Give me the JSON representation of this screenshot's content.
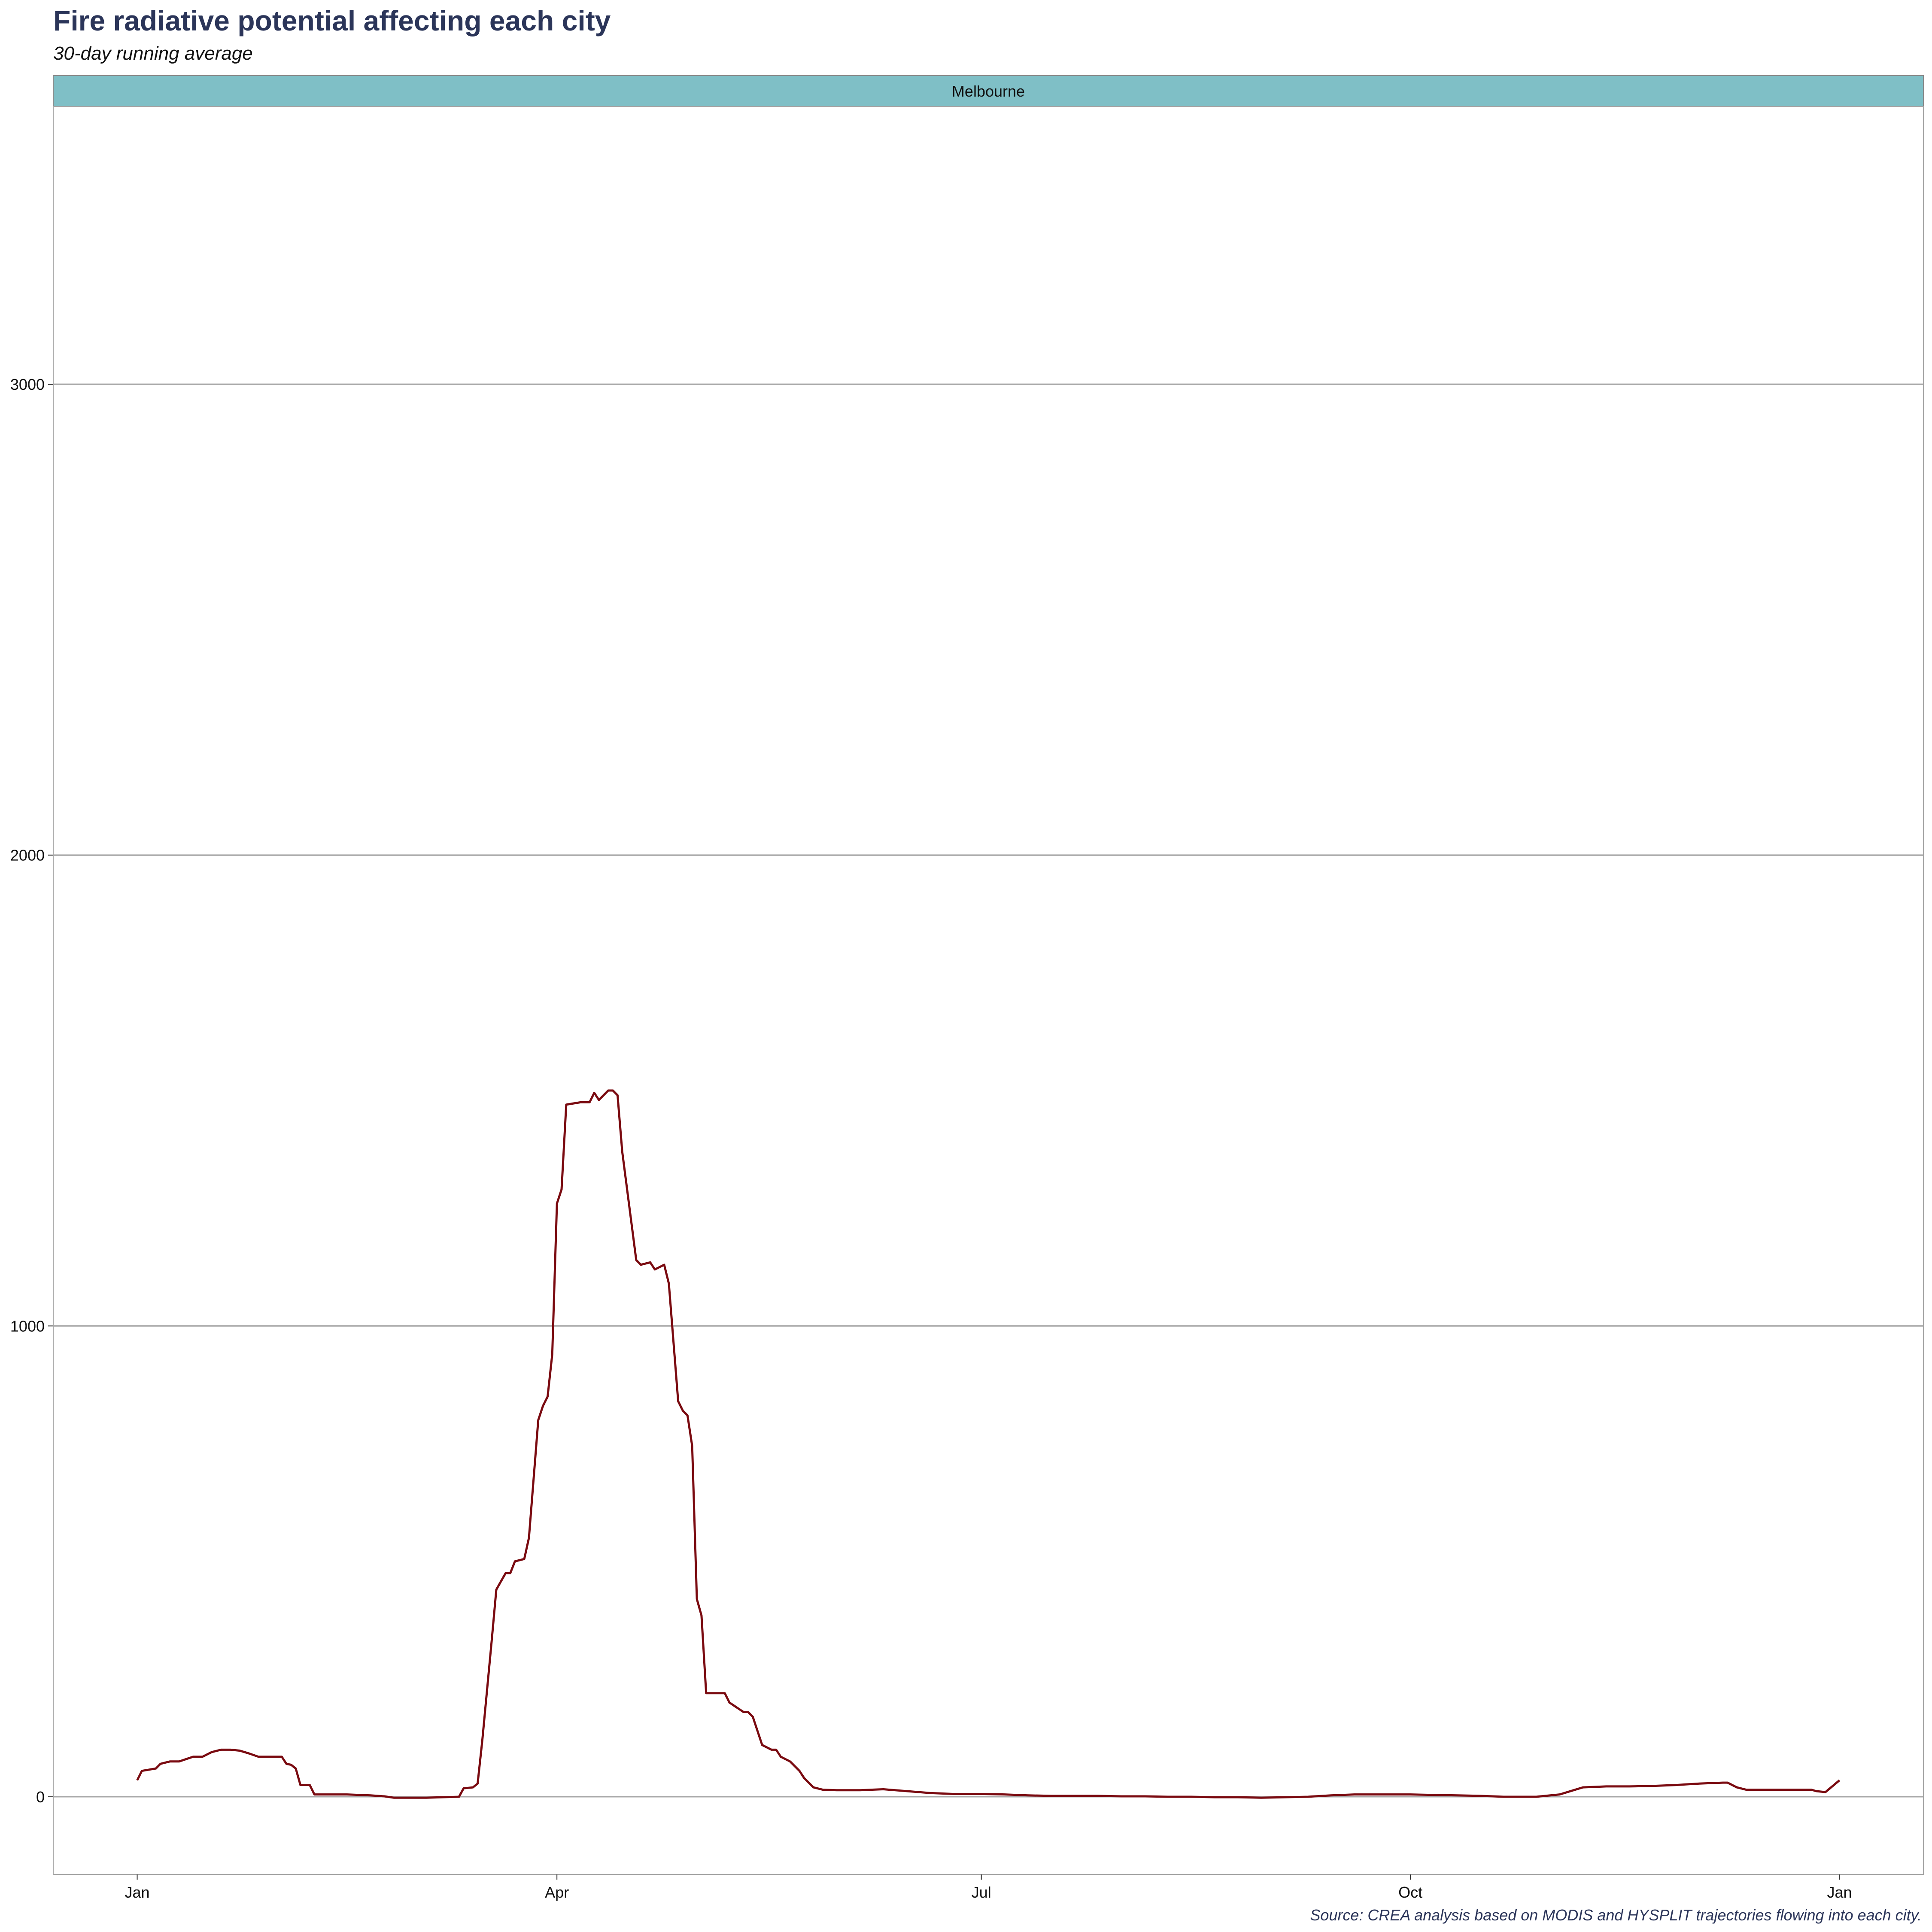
{
  "title": "Fire radiative potential affecting each city",
  "subtitle": "30-day running average",
  "caption": "Source: CREA analysis based on MODIS and HYSPLIT trajectories flowing into each city.",
  "colors": {
    "title": "#2b3559",
    "strip_fill": "#7fbfc6",
    "line": "#7a0a10",
    "grid": "#a6a6a6"
  },
  "chart_data": {
    "type": "line",
    "facet": "Melbourne",
    "title": "Fire radiative potential affecting each city",
    "subtitle": "30-day running average",
    "xlabel": "",
    "ylabel": "",
    "x_ticks": [
      {
        "label": "Jan",
        "day": 0
      },
      {
        "label": "Apr",
        "day": 90
      },
      {
        "label": "Jul",
        "day": 181
      },
      {
        "label": "Oct",
        "day": 273
      },
      {
        "label": "Jan",
        "day": 365
      }
    ],
    "x_range_days": [
      -18,
      383
    ],
    "ylim": [
      -165,
      3590
    ],
    "y_ticks": [
      0,
      1000,
      2000,
      3000
    ],
    "grid": "horizontal major",
    "series": [
      {
        "name": "",
        "points": [
          [
            0,
            35
          ],
          [
            1,
            55
          ],
          [
            4,
            60
          ],
          [
            5,
            70
          ],
          [
            7,
            75
          ],
          [
            9,
            75
          ],
          [
            12,
            85
          ],
          [
            14,
            85
          ],
          [
            16,
            95
          ],
          [
            18,
            100
          ],
          [
            20,
            100
          ],
          [
            22,
            98
          ],
          [
            24,
            92
          ],
          [
            26,
            85
          ],
          [
            29,
            85
          ],
          [
            31,
            85
          ],
          [
            32,
            70
          ],
          [
            33,
            68
          ],
          [
            34,
            60
          ],
          [
            35,
            25
          ],
          [
            37,
            25
          ],
          [
            38,
            5
          ],
          [
            40,
            5
          ],
          [
            45,
            5
          ],
          [
            50,
            3
          ],
          [
            53,
            1
          ],
          [
            55,
            -2
          ],
          [
            62,
            -2
          ],
          [
            69,
            0
          ],
          [
            70,
            18
          ],
          [
            72,
            20
          ],
          [
            73,
            28
          ],
          [
            74,
            120
          ],
          [
            76,
            330
          ],
          [
            77,
            440
          ],
          [
            79,
            475
          ],
          [
            80,
            475
          ],
          [
            81,
            500
          ],
          [
            83,
            505
          ],
          [
            84,
            550
          ],
          [
            86,
            800
          ],
          [
            87,
            830
          ],
          [
            88,
            850
          ],
          [
            89,
            940
          ],
          [
            90,
            1260
          ],
          [
            91,
            1290
          ],
          [
            92,
            1470
          ],
          [
            95,
            1475
          ],
          [
            97,
            1475
          ],
          [
            98,
            1495
          ],
          [
            99,
            1480
          ],
          [
            100,
            1490
          ],
          [
            101,
            1500
          ],
          [
            102,
            1500
          ],
          [
            103,
            1490
          ],
          [
            104,
            1370
          ],
          [
            107,
            1140
          ],
          [
            108,
            1130
          ],
          [
            110,
            1135
          ],
          [
            111,
            1120
          ],
          [
            112,
            1125
          ],
          [
            113,
            1130
          ],
          [
            114,
            1090
          ],
          [
            116,
            840
          ],
          [
            117,
            820
          ],
          [
            118,
            810
          ],
          [
            119,
            745
          ],
          [
            120,
            420
          ],
          [
            121,
            385
          ],
          [
            122,
            220
          ],
          [
            124,
            220
          ],
          [
            126,
            220
          ],
          [
            127,
            200
          ],
          [
            130,
            180
          ],
          [
            131,
            180
          ],
          [
            132,
            170
          ],
          [
            133,
            140
          ],
          [
            134,
            110
          ],
          [
            136,
            100
          ],
          [
            137,
            100
          ],
          [
            138,
            85
          ],
          [
            140,
            75
          ],
          [
            142,
            55
          ],
          [
            143,
            40
          ],
          [
            145,
            20
          ],
          [
            147,
            15
          ],
          [
            150,
            14
          ],
          [
            155,
            14
          ],
          [
            160,
            16
          ],
          [
            165,
            12
          ],
          [
            170,
            8
          ],
          [
            175,
            6
          ],
          [
            181,
            6
          ],
          [
            186,
            5
          ],
          [
            191,
            3
          ],
          [
            196,
            2
          ],
          [
            201,
            2
          ],
          [
            206,
            2
          ],
          [
            211,
            1
          ],
          [
            216,
            1
          ],
          [
            221,
            0
          ],
          [
            226,
            0
          ],
          [
            231,
            -1
          ],
          [
            236,
            -1
          ],
          [
            241,
            -2
          ],
          [
            246,
            -1
          ],
          [
            251,
            0
          ],
          [
            256,
            3
          ],
          [
            261,
            5
          ],
          [
            266,
            5
          ],
          [
            273,
            5
          ],
          [
            278,
            4
          ],
          [
            283,
            3
          ],
          [
            288,
            2
          ],
          [
            293,
            0
          ],
          [
            300,
            0
          ],
          [
            305,
            5
          ],
          [
            310,
            20
          ],
          [
            315,
            22
          ],
          [
            320,
            22
          ],
          [
            325,
            23
          ],
          [
            330,
            25
          ],
          [
            335,
            28
          ],
          [
            340,
            30
          ],
          [
            341,
            30
          ],
          [
            343,
            20
          ],
          [
            345,
            15
          ],
          [
            350,
            15
          ],
          [
            355,
            15
          ],
          [
            359,
            15
          ],
          [
            360,
            12
          ],
          [
            362,
            10
          ],
          [
            365,
            35
          ]
        ]
      }
    ]
  }
}
